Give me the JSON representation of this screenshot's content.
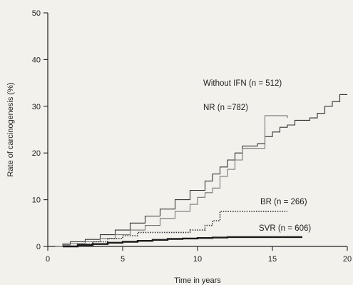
{
  "chart_data": {
    "type": "line",
    "title": "",
    "xlabel": "Time in years",
    "ylabel": "Rate of carcinogenesis (%)",
    "xlim": [
      0,
      20
    ],
    "ylim": [
      0,
      50
    ],
    "xticks": [
      0,
      5,
      10,
      15,
      20
    ],
    "yticks": [
      0,
      10,
      20,
      30,
      40,
      50
    ],
    "grid": false,
    "series": [
      {
        "name": "Without IFN (n = 512)",
        "style": "solid-thin",
        "color": "#333333",
        "x": [
          0.5,
          1.0,
          1.5,
          2.5,
          3.5,
          4.5,
          5.5,
          6.5,
          7.5,
          8.5,
          9.5,
          10.5,
          11.0,
          11.5,
          12.0,
          12.5,
          13.0,
          13.5,
          14.0,
          14.5,
          15.0,
          15.5,
          16.0,
          16.5,
          17.0,
          17.5,
          18.0,
          18.5,
          19.0,
          19.5,
          20.0
        ],
        "y": [
          0,
          0.5,
          1.0,
          1.5,
          2.5,
          3.5,
          5.0,
          6.5,
          8.0,
          10.0,
          12.0,
          14.0,
          15.5,
          17.0,
          18.5,
          20.0,
          21.5,
          21.5,
          22.0,
          23.5,
          24.5,
          25.5,
          26.0,
          27.0,
          27.0,
          27.5,
          28.5,
          30.0,
          31.0,
          32.5,
          32.5
        ]
      },
      {
        "name": "NR (n =782)",
        "style": "solid-thin",
        "color": "#777777",
        "x": [
          0.5,
          1.0,
          1.5,
          2.5,
          3.5,
          4.5,
          5.5,
          6.5,
          7.5,
          8.5,
          9.5,
          10.0,
          10.5,
          11.0,
          11.5,
          12.0,
          12.5,
          13.0,
          13.5,
          14.0,
          14.5,
          15.0,
          15.5,
          16.0
        ],
        "y": [
          0,
          0.3,
          0.6,
          1.0,
          1.7,
          2.5,
          3.5,
          4.5,
          6.0,
          7.5,
          9.0,
          10.5,
          11.5,
          12.5,
          15.0,
          16.5,
          18.5,
          21.0,
          21.0,
          21.0,
          28.0,
          28.0,
          28.0,
          27.5
        ]
      },
      {
        "name": "BR (n = 266)",
        "style": "dotted",
        "color": "#333333",
        "x": [
          1.0,
          2.0,
          3.0,
          4.0,
          5.0,
          6.0,
          8.0,
          9.5,
          10.5,
          11.0,
          11.5,
          12.0,
          14.0,
          15.0,
          16.0
        ],
        "y": [
          0,
          0.5,
          1.0,
          1.7,
          2.3,
          3.0,
          3.0,
          3.5,
          4.5,
          5.5,
          7.5,
          7.5,
          7.5,
          7.5,
          7.5
        ]
      },
      {
        "name": "SVR (n = 606)",
        "style": "solid-thick",
        "color": "#1a1a1a",
        "x": [
          1.0,
          2.0,
          3.0,
          4.0,
          5.0,
          6.0,
          7.0,
          8.0,
          9.0,
          10.0,
          11.0,
          12.0,
          13.0,
          14.0,
          15.0,
          16.0,
          17.0
        ],
        "y": [
          0,
          0.3,
          0.5,
          0.8,
          1.0,
          1.2,
          1.4,
          1.6,
          1.7,
          1.8,
          1.9,
          2.0,
          2.0,
          2.0,
          2.0,
          2.0,
          2.0
        ]
      }
    ]
  }
}
